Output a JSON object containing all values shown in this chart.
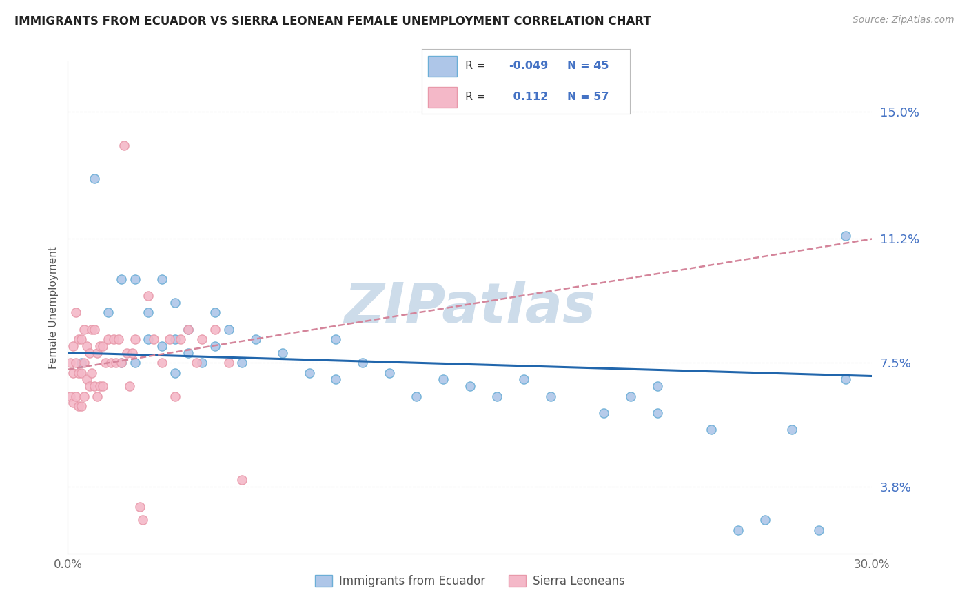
{
  "title": "IMMIGRANTS FROM ECUADOR VS SIERRA LEONEAN FEMALE UNEMPLOYMENT CORRELATION CHART",
  "source_text": "Source: ZipAtlas.com",
  "ylabel": "Female Unemployment",
  "xlim": [
    0.0,
    0.3
  ],
  "ylim": [
    0.018,
    0.165
  ],
  "xtick_vals": [
    0.0,
    0.3
  ],
  "xtick_labels": [
    "0.0%",
    "30.0%"
  ],
  "ytick_vals": [
    0.038,
    0.075,
    0.112,
    0.15
  ],
  "ytick_labels": [
    "3.8%",
    "7.5%",
    "11.2%",
    "15.0%"
  ],
  "ecuador_color": "#6baed6",
  "sierraleone_edge_color": "#e899aa",
  "ecuador_scatter_fill": "#aec6e8",
  "sierraleone_scatter_fill": "#f4b8c8",
  "trend_ecuador_color": "#2166ac",
  "trend_sierraleone_color": "#d4849a",
  "watermark": "ZIPatlas",
  "watermark_color": "#cddcea",
  "grid_color": "#cccccc",
  "ecuador_x": [
    0.005,
    0.01,
    0.015,
    0.02,
    0.02,
    0.025,
    0.025,
    0.03,
    0.03,
    0.035,
    0.035,
    0.04,
    0.04,
    0.04,
    0.045,
    0.045,
    0.05,
    0.055,
    0.055,
    0.06,
    0.065,
    0.07,
    0.08,
    0.09,
    0.1,
    0.1,
    0.11,
    0.12,
    0.13,
    0.14,
    0.15,
    0.16,
    0.17,
    0.18,
    0.2,
    0.21,
    0.22,
    0.22,
    0.24,
    0.25,
    0.26,
    0.27,
    0.28,
    0.29,
    0.29
  ],
  "ecuador_y": [
    0.075,
    0.13,
    0.09,
    0.1,
    0.075,
    0.1,
    0.075,
    0.09,
    0.082,
    0.1,
    0.08,
    0.093,
    0.082,
    0.072,
    0.085,
    0.078,
    0.075,
    0.09,
    0.08,
    0.085,
    0.075,
    0.082,
    0.078,
    0.072,
    0.082,
    0.07,
    0.075,
    0.072,
    0.065,
    0.07,
    0.068,
    0.065,
    0.07,
    0.065,
    0.06,
    0.065,
    0.068,
    0.06,
    0.055,
    0.025,
    0.028,
    0.055,
    0.025,
    0.07,
    0.113
  ],
  "sierraleone_x": [
    0.001,
    0.001,
    0.002,
    0.002,
    0.002,
    0.003,
    0.003,
    0.003,
    0.004,
    0.004,
    0.004,
    0.005,
    0.005,
    0.005,
    0.006,
    0.006,
    0.006,
    0.007,
    0.007,
    0.008,
    0.008,
    0.009,
    0.009,
    0.01,
    0.01,
    0.011,
    0.011,
    0.012,
    0.012,
    0.013,
    0.013,
    0.014,
    0.015,
    0.016,
    0.017,
    0.018,
    0.019,
    0.02,
    0.021,
    0.022,
    0.023,
    0.024,
    0.025,
    0.027,
    0.028,
    0.03,
    0.032,
    0.035,
    0.038,
    0.04,
    0.042,
    0.045,
    0.048,
    0.05,
    0.055,
    0.06,
    0.065
  ],
  "sierraleone_y": [
    0.075,
    0.065,
    0.08,
    0.072,
    0.063,
    0.09,
    0.075,
    0.065,
    0.082,
    0.072,
    0.062,
    0.082,
    0.072,
    0.062,
    0.085,
    0.075,
    0.065,
    0.08,
    0.07,
    0.078,
    0.068,
    0.085,
    0.072,
    0.085,
    0.068,
    0.078,
    0.065,
    0.08,
    0.068,
    0.08,
    0.068,
    0.075,
    0.082,
    0.075,
    0.082,
    0.075,
    0.082,
    0.075,
    0.14,
    0.078,
    0.068,
    0.078,
    0.082,
    0.032,
    0.028,
    0.095,
    0.082,
    0.075,
    0.082,
    0.065,
    0.082,
    0.085,
    0.075,
    0.082,
    0.085,
    0.075,
    0.04
  ],
  "ecu_trend_x0": 0.0,
  "ecu_trend_y0": 0.078,
  "ecu_trend_x1": 0.3,
  "ecu_trend_y1": 0.071,
  "sl_trend_x0": 0.0,
  "sl_trend_y0": 0.073,
  "sl_trend_x1": 0.3,
  "sl_trend_y1": 0.112,
  "background_color": "#ffffff"
}
